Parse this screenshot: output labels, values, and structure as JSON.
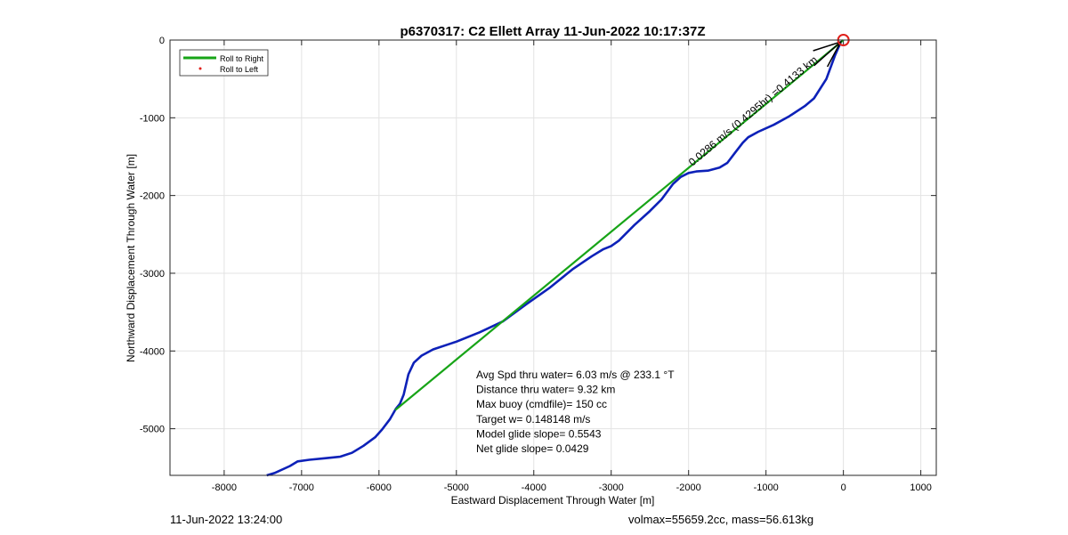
{
  "chart_data": {
    "type": "line",
    "title": "p6370317: C2 Ellett Array 11-Jun-2022 10:17:37Z",
    "xlabel": "Eastward Displacement Through Water [m]",
    "ylabel": "Northward Displacement Through Water [m]",
    "xlim": [
      -8700,
      1200
    ],
    "ylim": [
      -5600,
      0
    ],
    "xticks": [
      -8000,
      -7000,
      -6000,
      -5000,
      -4000,
      -3000,
      -2000,
      -1000,
      0,
      1000
    ],
    "yticks": [
      0,
      -1000,
      -2000,
      -3000,
      -4000,
      -5000
    ],
    "grid": true,
    "legend_position": "top-left",
    "legend": [
      {
        "name": "Roll to Right",
        "color": "#17a417",
        "style": "line"
      },
      {
        "name": "Roll to Left",
        "color": "#e0201b",
        "style": "dot"
      }
    ],
    "series": [
      {
        "name": "track",
        "color": "#0d21b8",
        "x": [
          -30,
          -110,
          -220,
          -380,
          -500,
          -700,
          -900,
          -1100,
          -1230,
          -1300,
          -1400,
          -1500,
          -1600,
          -1750,
          -1900,
          -2000,
          -2100,
          -2200,
          -2350,
          -2500,
          -2700,
          -2900,
          -3000,
          -3100,
          -3250,
          -3500,
          -3800,
          -4100,
          -4400,
          -4700,
          -5000,
          -5300,
          -5450,
          -5550,
          -5620,
          -5680,
          -5730,
          -5780,
          -5860,
          -5960,
          -6050,
          -6200,
          -6350,
          -6500,
          -6700,
          -6900,
          -7050,
          -7150,
          -7350,
          -7450
        ],
        "y": [
          -20,
          -200,
          -500,
          -750,
          -850,
          -980,
          -1090,
          -1180,
          -1250,
          -1320,
          -1450,
          -1580,
          -1640,
          -1680,
          -1690,
          -1710,
          -1760,
          -1850,
          -2050,
          -2200,
          -2380,
          -2580,
          -2650,
          -2690,
          -2780,
          -2950,
          -3190,
          -3400,
          -3620,
          -3760,
          -3880,
          -3980,
          -4060,
          -4150,
          -4300,
          -4560,
          -4680,
          -4740,
          -4880,
          -5010,
          -5110,
          -5220,
          -5310,
          -5360,
          -5380,
          -5400,
          -5420,
          -5480,
          -5570,
          -5600
        ]
      },
      {
        "name": "Roll to Right",
        "color": "#17a417",
        "x": [
          -5790,
          0
        ],
        "y": [
          -4760,
          0
        ]
      }
    ],
    "annotations": [
      {
        "text": "Avg Spd thru water=  6.03 m/s @ 233.1 °T"
      },
      {
        "text": "Distance thru water=  9.32 km"
      },
      {
        "text": "Max buoy (cmdfile)= 150 cc"
      },
      {
        "text": "Target w= 0.148148 m/s"
      },
      {
        "text": "Model glide slope= 0.5543"
      },
      {
        "text": "Net glide slope= 0.0429"
      }
    ],
    "current_label": "0.0286 m/s (0.4295hr) =0.4133 km",
    "end_marker": {
      "x": 0,
      "y": 0,
      "color": "#e0201b"
    }
  },
  "footer": {
    "left": "11-Jun-2022 13:24:00",
    "right": "volmax=55659.2cc, mass=56.613kg"
  }
}
